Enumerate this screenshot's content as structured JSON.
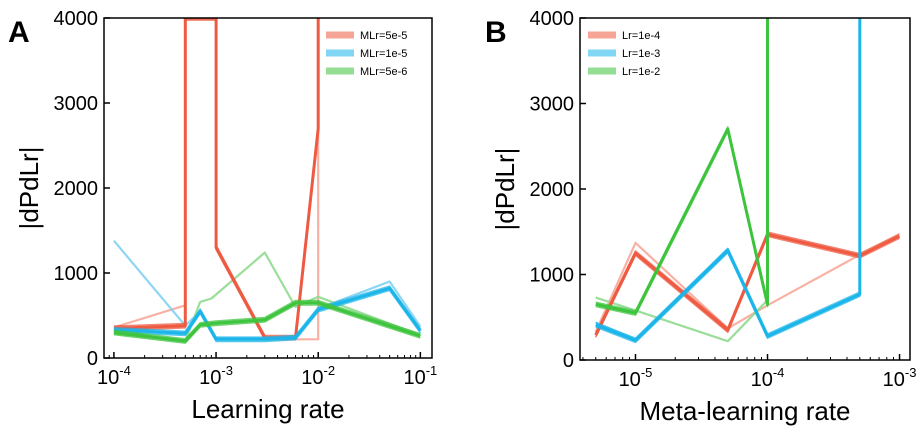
{
  "chart_data": [
    {
      "type": "line",
      "panel_label": "A",
      "xlabel": "Learning rate",
      "ylabel": "|dPdLr|",
      "xscale": "log",
      "xlim": [
        8e-05,
        0.13
      ],
      "ylim": [
        0,
        4000
      ],
      "x_ticks": [
        0.0001,
        0.001,
        0.01,
        0.1
      ],
      "x_tick_labels": [
        {
          "base": "10",
          "exp": "-4"
        },
        {
          "base": "10",
          "exp": "-3"
        },
        {
          "base": "10",
          "exp": "-2"
        },
        {
          "base": "10",
          "exp": "-1"
        }
      ],
      "y_ticks": [
        0,
        1000,
        2000,
        3000,
        4000
      ],
      "y_tick_labels": [
        "0",
        "1000",
        "2000",
        "3000",
        "4000"
      ],
      "legend_position": "top-right",
      "legend": [
        "MLr=5e-5",
        "MLr=1e-5",
        "MLr=5e-6"
      ],
      "series": [
        {
          "name": "MLr=5e-5",
          "color": "#ef5a42",
          "x": [
            0.0001,
            0.0005,
            0.0005,
            0.001,
            0.001,
            0.003,
            0.006,
            0.01,
            0.01
          ],
          "y": [
            350,
            380,
            4000,
            4000,
            1300,
            240,
            240,
            2700,
            4000
          ]
        },
        {
          "name": "MLr=1e-5",
          "color": "#1cb5ea",
          "x": [
            0.0001,
            0.0005,
            0.0007,
            0.001,
            0.003,
            0.006,
            0.01,
            0.05,
            0.1
          ],
          "y": [
            330,
            290,
            550,
            220,
            220,
            240,
            570,
            820,
            320
          ]
        },
        {
          "name": "MLr=5e-6",
          "color": "#3ec43e",
          "x": [
            0.0001,
            0.0005,
            0.0007,
            0.001,
            0.003,
            0.006,
            0.01,
            0.1
          ],
          "y": [
            300,
            200,
            390,
            410,
            450,
            650,
            650,
            260
          ]
        }
      ],
      "faint_traces": [
        {
          "color": "#f7a99a",
          "x": [
            0.0001,
            0.0005,
            0.0005,
            0.001,
            0.001,
            0.003,
            0.006,
            0.006,
            0.01,
            0.01
          ],
          "y": [
            360,
            620,
            4000,
            4000,
            1320,
            230,
            240,
            220,
            220,
            4000
          ]
        },
        {
          "color": "#7fd2f2",
          "x": [
            0.0001,
            0.0005,
            0.0007,
            0.001,
            0.006,
            0.01,
            0.05,
            0.1
          ],
          "y": [
            1380,
            380,
            550,
            230,
            230,
            580,
            900,
            370
          ]
        },
        {
          "color": "#8fda8f",
          "x": [
            0.0001,
            0.0005,
            0.0007,
            0.0009,
            0.003,
            0.006,
            0.01,
            0.1
          ],
          "y": [
            290,
            200,
            660,
            700,
            1240,
            600,
            720,
            270
          ]
        }
      ]
    },
    {
      "type": "line",
      "panel_label": "B",
      "xlabel": "Meta-learning rate",
      "ylabel": "|dPdLr|",
      "xscale": "log",
      "xlim": [
        3.8e-06,
        0.0012
      ],
      "ylim": [
        0,
        4000
      ],
      "x_ticks": [
        1e-05,
        0.0001,
        0.001
      ],
      "x_tick_labels": [
        {
          "base": "10",
          "exp": "-5"
        },
        {
          "base": "10",
          "exp": "-4"
        },
        {
          "base": "10",
          "exp": "-3"
        }
      ],
      "y_ticks": [
        0,
        1000,
        2000,
        3000,
        4000
      ],
      "y_tick_labels": [
        "0",
        "1000",
        "2000",
        "3000",
        "4000"
      ],
      "legend_position": "top-left",
      "legend": [
        "Lr=1e-4",
        "Lr=1e-3",
        "Lr=1e-2"
      ],
      "series": [
        {
          "name": "Lr=1e-4",
          "color": "#ef5a42",
          "x": [
            5e-06,
            1e-05,
            5e-05,
            0.0001,
            0.0005,
            0.001
          ],
          "y": [
            290,
            1250,
            350,
            1470,
            1220,
            1450
          ]
        },
        {
          "name": "Lr=1e-3",
          "color": "#1cb5ea",
          "x": [
            5e-06,
            1e-05,
            5e-05,
            0.0001,
            0.0005,
            0.0005
          ],
          "y": [
            410,
            230,
            1280,
            280,
            770,
            4000
          ]
        },
        {
          "name": "Lr=1e-2",
          "color": "#3ec43e",
          "x": [
            5e-06,
            1e-05,
            5e-05,
            0.0001,
            0.0001
          ],
          "y": [
            650,
            550,
            2700,
            650,
            4000
          ]
        }
      ],
      "faint_traces": [
        {
          "color": "#f7a99a",
          "x": [
            5e-06,
            1e-05,
            5e-05,
            0.0001,
            0.0005
          ],
          "y": [
            330,
            1370,
            370,
            640,
            1230
          ]
        },
        {
          "color": "#7fd2f2",
          "x": [
            5e-06,
            1e-05,
            5e-05,
            0.0001
          ],
          "y": [
            440,
            240,
            1300,
            300
          ]
        },
        {
          "color": "#8fda8f",
          "x": [
            5e-06,
            1e-05,
            5e-05,
            0.0001
          ],
          "y": [
            730,
            580,
            220,
            700
          ]
        }
      ]
    }
  ]
}
